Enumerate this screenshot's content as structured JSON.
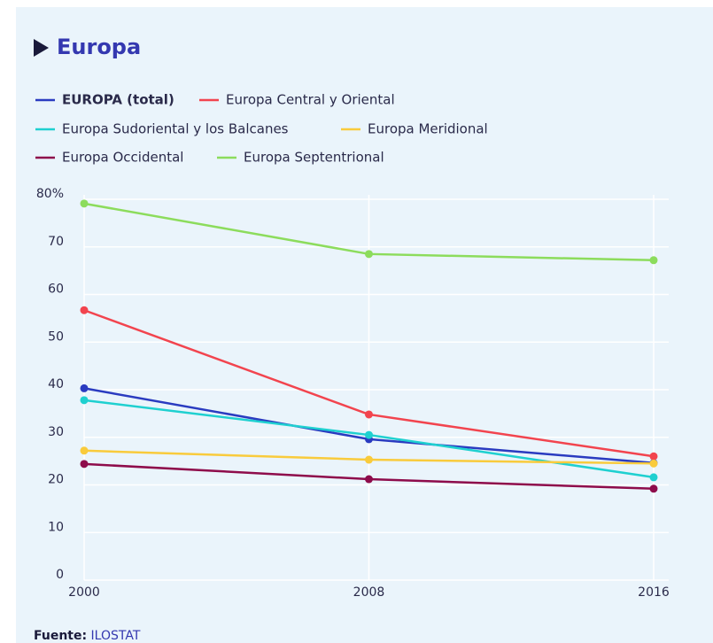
{
  "chart_data": {
    "type": "line",
    "title": "Europa",
    "x": [
      2000,
      2008,
      2016
    ],
    "xlim": [
      2000,
      2016
    ],
    "xticks": [
      2000,
      2008,
      2016
    ],
    "ylim": [
      0,
      80
    ],
    "yticks": [
      0,
      10,
      20,
      30,
      40,
      50,
      60,
      70,
      {
        "value": 80,
        "label": "80%"
      }
    ],
    "grid": true,
    "series": [
      {
        "name": "EUROPA (total)",
        "color": "#2a3bc0",
        "values": [
          40.3,
          29.6,
          24.6
        ]
      },
      {
        "name": "Europa Central y Oriental",
        "color": "#f2444e",
        "values": [
          56.7,
          34.8,
          26.0
        ]
      },
      {
        "name": "Europa Sudoriental y los Balcanes",
        "color": "#1fd0d0",
        "values": [
          37.8,
          30.5,
          21.6
        ]
      },
      {
        "name": "Europa Meridional",
        "color": "#f9cb3c",
        "values": [
          27.2,
          25.3,
          24.5
        ]
      },
      {
        "name": "Europa Occidental",
        "color": "#8e0c4b",
        "values": [
          24.4,
          21.2,
          19.2
        ]
      },
      {
        "name": "Europa Septentrional",
        "color": "#8cdc5c",
        "values": [
          79.1,
          68.5,
          67.2
        ]
      }
    ],
    "footer": {
      "label": "Fuente:",
      "source": "ILOSTAT"
    }
  }
}
